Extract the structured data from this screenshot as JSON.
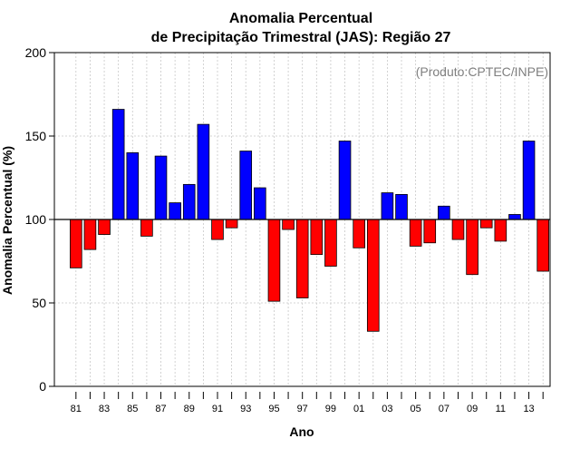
{
  "chart_data": {
    "type": "bar",
    "title": "Anomalia Percentual",
    "subtitle": "de Precipitação Trimestral (JAS): Região 27",
    "xlabel": "Ano",
    "ylabel": "Anomalia Percentual (%)",
    "annotation": "(Produto:CPTEC/INPE)",
    "ylim": [
      0,
      200
    ],
    "yticks": [
      0,
      50,
      100,
      150,
      200
    ],
    "baseline": 100,
    "grid": true,
    "colors": {
      "above": "#0000ff",
      "below": "#ff0000"
    },
    "categories": [
      "1981",
      "1982",
      "1983",
      "1984",
      "1985",
      "1986",
      "1987",
      "1988",
      "1989",
      "1990",
      "1991",
      "1992",
      "1993",
      "1994",
      "1995",
      "1996",
      "1997",
      "1998",
      "1999",
      "2000",
      "2001",
      "2002",
      "2003",
      "2004",
      "2005",
      "2006",
      "2007",
      "2008",
      "2009",
      "2010",
      "2011",
      "2012",
      "2013",
      "2014"
    ],
    "xtick_labels": [
      "81",
      "",
      "83",
      "",
      "85",
      "",
      "87",
      "",
      "89",
      "",
      "91",
      "",
      "93",
      "",
      "95",
      "",
      "97",
      "",
      "99",
      "",
      "01",
      "",
      "03",
      "",
      "05",
      "",
      "07",
      "",
      "09",
      "",
      "11",
      "",
      "13",
      ""
    ],
    "values": [
      71,
      82,
      91,
      166,
      140,
      90,
      138,
      110,
      121,
      157,
      88,
      95,
      141,
      119,
      51,
      94,
      53,
      79,
      72,
      147,
      83,
      33,
      116,
      115,
      84,
      86,
      108,
      88,
      67,
      95,
      87,
      103,
      147,
      69
    ]
  }
}
